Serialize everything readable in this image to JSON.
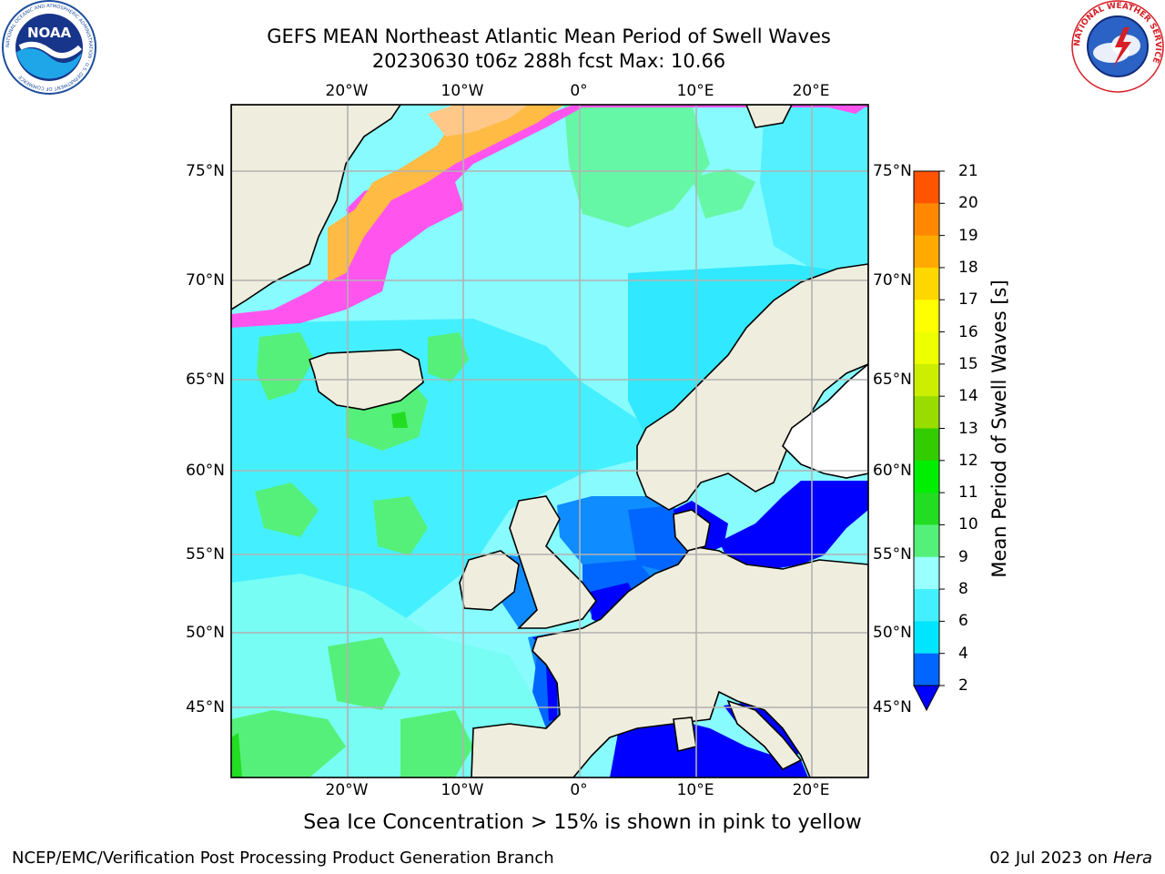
{
  "header": {
    "title_line1": "GEFS MEAN Northeast Atlantic Mean Period of Swell Waves",
    "title_line2": "20230630 t06z 288h fcst   Max: 10.66"
  },
  "logos": {
    "noaa_text": "NOAA",
    "noaa_ring_text": "NATIONAL OCEANIC AND ATMOSPHERIC ADMINISTRATION · U.S. DEPARTMENT OF COMMERCE",
    "nws_ring_text": "NATIONAL WEATHER SERVICE"
  },
  "map": {
    "lon_labels_top": [
      "20°W",
      "10°W",
      "0°",
      "10°E",
      "20°E"
    ],
    "lon_labels_bottom": [
      "20°W",
      "10°W",
      "0°",
      "10°E",
      "20°E"
    ],
    "lat_labels_left": [
      "75°N",
      "70°N",
      "65°N",
      "60°N",
      "55°N",
      "50°N",
      "45°N"
    ],
    "lat_labels_right": [
      "75°N",
      "70°N",
      "65°N",
      "60°N",
      "55°N",
      "50°N",
      "45°N"
    ]
  },
  "colorbar": {
    "title": "Mean Period of Swell Waves [s]",
    "ticks": [
      "2",
      "4",
      "6",
      "8",
      "9",
      "10",
      "11",
      "12",
      "13",
      "14",
      "15",
      "16",
      "17",
      "18",
      "19",
      "20",
      "21"
    ],
    "colors": [
      "#0066ff",
      "#00e5ff",
      "#44f0ff",
      "#99ffff",
      "#55f07a",
      "#22dd22",
      "#00ee00",
      "#33cc00",
      "#99dd00",
      "#ccee00",
      "#eeff00",
      "#ffff00",
      "#ffd700",
      "#ffaa00",
      "#ff8800",
      "#ff5500",
      "#ff2200",
      "#ff0000"
    ],
    "under_color": "#0000ff"
  },
  "colors": {
    "land": "#efeddd",
    "ocean_base": "#88fbff",
    "sea_ice": "#ff55ee",
    "grid": "#b2b2b2"
  },
  "caption": "Sea Ice Concentration > 15% is shown in pink to yellow",
  "footer": {
    "left": "NCEP/EMC/Verification Post Processing Product Generation Branch",
    "right_prefix": "02 Jul 2023 on ",
    "right_host": "Hera"
  }
}
